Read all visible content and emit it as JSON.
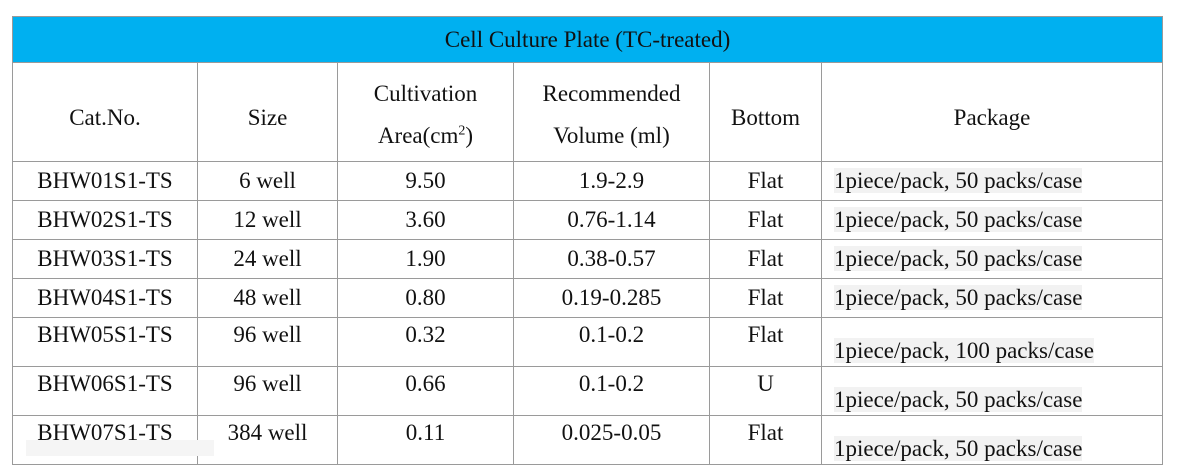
{
  "table": {
    "title": "Cell Culture Plate (TC-treated)",
    "headers": {
      "cat_no": "Cat.No.",
      "size": "Size",
      "area_line1": "Cultivation",
      "area_line2": "Area(cm",
      "area_sup": "2",
      "area_close": ")",
      "volume_line1": "Recommended",
      "volume_line2": "Volume (ml)",
      "bottom": "Bottom",
      "package": "Package"
    },
    "rows": [
      {
        "cat": "BHW01S1-TS",
        "size": "6 well",
        "area": "9.50",
        "volume": "1.9-2.9",
        "bottom": "Flat",
        "package": "1piece/pack, 50 packs/case"
      },
      {
        "cat": "BHW02S1-TS",
        "size": "12 well",
        "area": "3.60",
        "volume": "0.76-1.14",
        "bottom": "Flat",
        "package": "1piece/pack, 50 packs/case"
      },
      {
        "cat": "BHW03S1-TS",
        "size": "24 well",
        "area": "1.90",
        "volume": "0.38-0.57",
        "bottom": "Flat",
        "package": "1piece/pack, 50 packs/case"
      },
      {
        "cat": "BHW04S1-TS",
        "size": "48 well",
        "area": "0.80",
        "volume": "0.19-0.285",
        "bottom": "Flat",
        "package": "1piece/pack, 50 packs/case"
      },
      {
        "cat": "BHW05S1-TS",
        "size": "96 well",
        "area": "0.32",
        "volume": "0.1-0.2",
        "bottom": "Flat",
        "package": "1piece/pack, 100 packs/case"
      },
      {
        "cat": "BHW06S1-TS",
        "size": "96 well",
        "area": "0.66",
        "volume": "0.1-0.2",
        "bottom": "U",
        "package": "1piece/pack, 50 packs/case"
      },
      {
        "cat": "BHW07S1-TS",
        "size": "384 well",
        "area": "0.11",
        "volume": "0.025-0.05",
        "bottom": "Flat",
        "package": "1piece/pack, 50 packs/case"
      }
    ]
  },
  "colors": {
    "title_bg": "#00b0f0",
    "border": "#9a9a9a",
    "package_highlight": "#f2f2f2"
  }
}
